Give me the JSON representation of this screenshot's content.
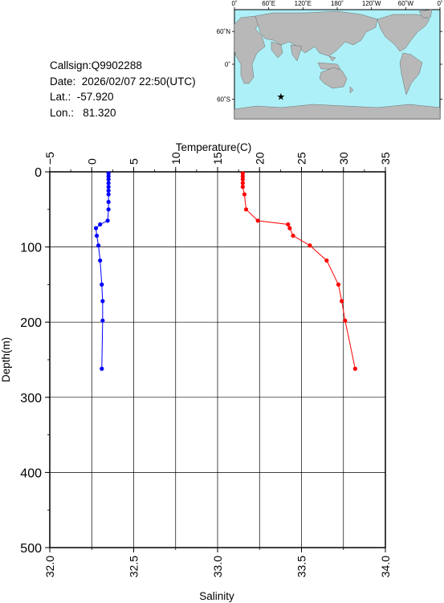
{
  "meta": {
    "callsign": "Callsign:Q9902288",
    "date": "Date:  2026/02/07 22:50(UTC)",
    "lat": "Lat.:  -57.920",
    "lon": "Lon.:   81.320"
  },
  "map": {
    "lon_labels": [
      "0˚",
      "60˚E",
      "120˚E",
      "180˚",
      "120˚W",
      "60˚W",
      "0˚"
    ],
    "lat_labels": [
      "60˚N",
      "0˚",
      "60˚S"
    ],
    "marker": {
      "lon": 81.32,
      "lat": -57.92,
      "symbol": "★"
    },
    "colors": {
      "land": "#b8b8b8",
      "ocean": "#aef0f7",
      "marker": "#ff0000"
    }
  },
  "chart_data": {
    "type": "line",
    "xlabel_top": "Temperature(C)",
    "xlabel_bottom": "Salinity",
    "ylabel": "Depth(m)",
    "temperature_ticks": [
      "−5",
      "0",
      "5",
      "10",
      "15",
      "20",
      "25",
      "30",
      "35"
    ],
    "salinity_ticks": [
      "32.0",
      "32.5",
      "33.0",
      "33.5",
      "34.0"
    ],
    "depth_ticks": [
      "0",
      "100",
      "200",
      "300",
      "400",
      "500"
    ],
    "temperature_range": [
      -5,
      35
    ],
    "salinity_range": [
      32.0,
      34.0
    ],
    "depth_range": [
      0,
      500
    ],
    "grid": true,
    "series": [
      {
        "axis": "temperature",
        "color": "#0000ff",
        "depth": [
          2,
          6,
          10,
          15,
          20,
          25,
          30,
          40,
          50,
          65,
          70,
          75,
          85,
          98,
          118,
          150,
          172,
          198,
          262
        ],
        "values": [
          2.0,
          2.0,
          2.0,
          2.0,
          2.0,
          2.0,
          2.0,
          2.0,
          2.0,
          1.9,
          1.0,
          0.5,
          0.6,
          0.8,
          1.0,
          1.2,
          1.3,
          1.3,
          1.2
        ]
      },
      {
        "axis": "salinity",
        "color": "#ff0000",
        "depth": [
          2,
          6,
          10,
          15,
          20,
          30,
          50,
          65,
          70,
          75,
          85,
          98,
          118,
          150,
          172,
          198,
          262
        ],
        "values": [
          33.15,
          33.15,
          33.15,
          33.15,
          33.15,
          33.16,
          33.17,
          33.24,
          33.42,
          33.43,
          33.45,
          33.55,
          33.65,
          33.72,
          33.74,
          33.76,
          33.82
        ]
      }
    ]
  }
}
